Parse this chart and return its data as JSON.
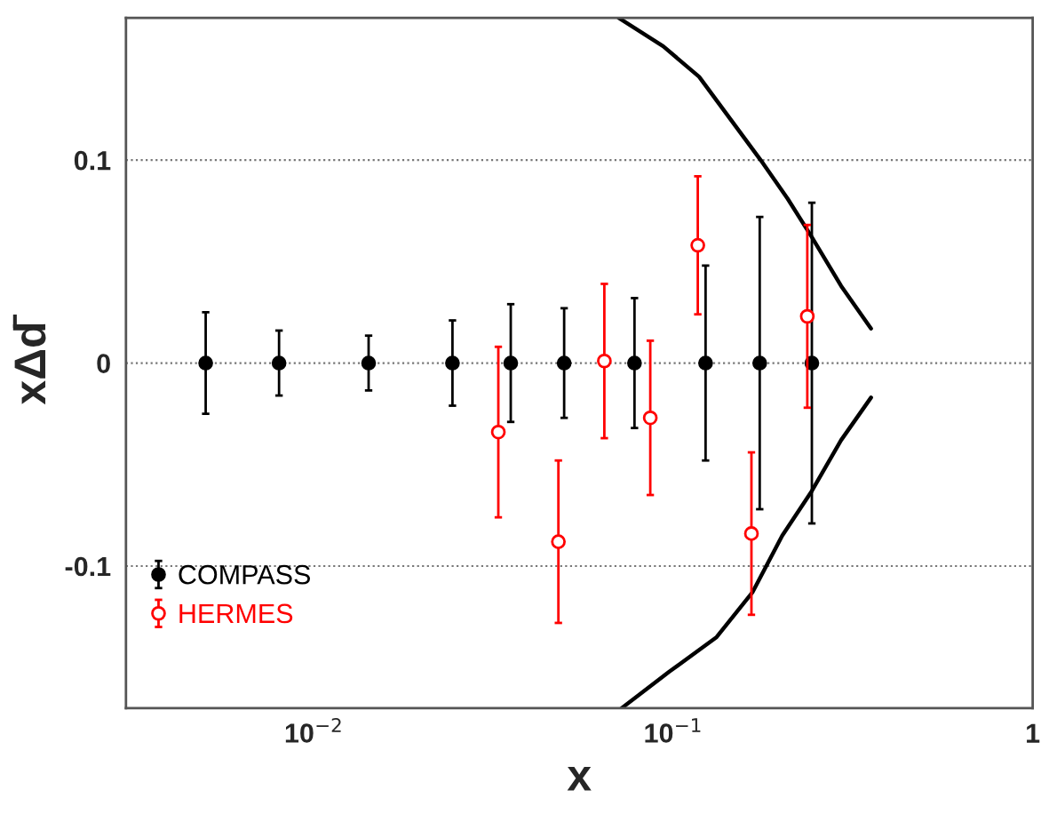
{
  "chart_data": {
    "type": "scatter",
    "xlabel": "x",
    "ylabel": "xΔd̄",
    "log": "x",
    "xlim": [
      0.003,
      1
    ],
    "xticks": [
      {
        "value": 0.01,
        "label": "10$^{−2}$"
      },
      {
        "value": 0.1,
        "label": "10$^{−1}$"
      },
      1
    ],
    "ylim": [
      -0.17,
      0.17
    ],
    "yticks": [
      -0.1,
      0,
      0.1
    ],
    "grid": "y",
    "legend": "bottom left",
    "series": [
      {
        "name": "COMPASS",
        "color": "#000000",
        "marker": "circle",
        "x": [
          0.005,
          0.008,
          0.0142,
          0.0243,
          0.0353,
          0.0497,
          0.078,
          0.123,
          0.174,
          0.243
        ],
        "values": [
          0,
          0,
          0,
          0,
          0,
          0,
          0,
          0,
          0,
          0
        ],
        "errors": [
          0.025,
          0.016,
          0.0135,
          0.021,
          0.029,
          0.027,
          0.032,
          0.048,
          0.072,
          0.079
        ]
      },
      {
        "name": "HERMES",
        "color": "#ff0000",
        "marker": "circle",
        "x": [
          0.0326,
          0.0479,
          0.0643,
          0.0863,
          0.117,
          0.165,
          0.236
        ],
        "values": [
          -0.034,
          -0.088,
          0.001,
          -0.027,
          0.058,
          -0.084,
          0.023
        ],
        "errors": [
          0.042,
          0.04,
          0.038,
          0.038,
          0.034,
          0.04,
          0.045
        ]
      },
      {
        "type": "line",
        "color": "#000000",
        "x": [
          0.0705,
          0.0938,
          0.118,
          0.175,
          0.208,
          0.243,
          0.293,
          0.355
        ],
        "values": [
          0.17,
          0.156,
          0.141,
          0.1,
          0.081,
          0.062,
          0.038,
          0.017
        ]
      },
      {
        "type": "line",
        "color": "#000000",
        "x": [
          0.0718,
          0.0975,
          0.132,
          0.166,
          0.201,
          0.243,
          0.293,
          0.355
        ],
        "values": [
          -0.17,
          -0.152,
          -0.135,
          -0.113,
          -0.085,
          -0.063,
          -0.038,
          -0.017
        ]
      }
    ]
  }
}
